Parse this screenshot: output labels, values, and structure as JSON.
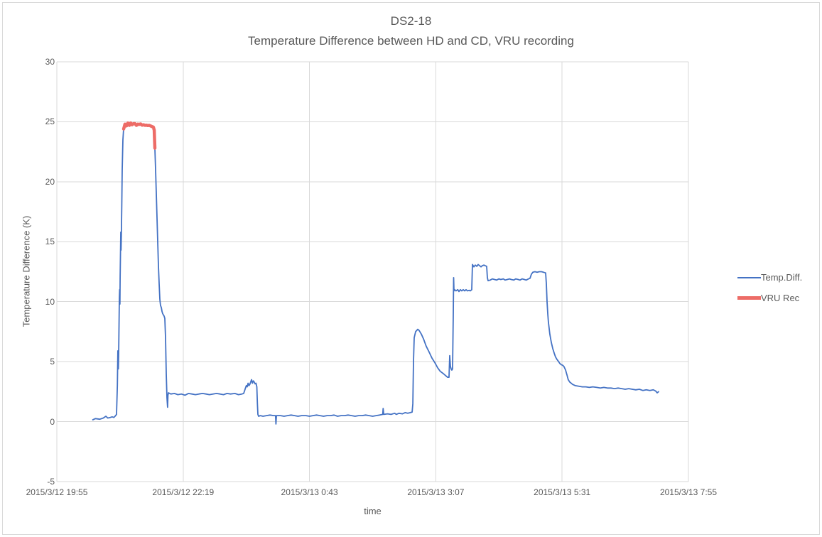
{
  "window": {
    "background": "#FFFFFF",
    "border_color": "#D9D9D9"
  },
  "chart_data": {
    "type": "line",
    "title": "DS2-18",
    "subtitle": "Temperature Difference between HD and CD, VRU recording",
    "xlabel": "time",
    "ylabel": "Temperature Difference (K)",
    "ylim": [
      -5,
      30
    ],
    "yticks": [
      30,
      25,
      20,
      15,
      10,
      5,
      0,
      -5
    ],
    "grid": true,
    "grid_color": "#D9D9D9",
    "text_color": "#595959",
    "legend_position": "right",
    "x_axis": {
      "range_minutes": [
        0,
        720
      ],
      "tick_minutes": [
        0,
        144,
        288,
        432,
        576,
        720
      ],
      "tick_labels": [
        "2015/3/12 19:55",
        "2015/3/12 22:19",
        "2015/3/13 0:43",
        "2015/3/13 3:07",
        "2015/3/13 5:31",
        "2015/3/13 7:55"
      ]
    },
    "series": [
      {
        "name": "Temp.Diff.",
        "color": "#4472C4",
        "stroke_width": 1.8,
        "points": [
          [
            41,
            0.15
          ],
          [
            44,
            0.25
          ],
          [
            49,
            0.2
          ],
          [
            53,
            0.3
          ],
          [
            56,
            0.45
          ],
          [
            58,
            0.3
          ],
          [
            61,
            0.35
          ],
          [
            63,
            0.4
          ],
          [
            65,
            0.35
          ],
          [
            67,
            0.5
          ],
          [
            68,
            0.6
          ],
          [
            69,
            3
          ],
          [
            69.6,
            5.9
          ],
          [
            70.1,
            4.4
          ],
          [
            70.5,
            5.5
          ],
          [
            71.3,
            10.3
          ],
          [
            71.6,
            11
          ],
          [
            71.9,
            9.8
          ],
          [
            72.2,
            12
          ],
          [
            72.9,
            15.8
          ],
          [
            73.2,
            14.3
          ],
          [
            73.5,
            15.5
          ],
          [
            74,
            18
          ],
          [
            74.5,
            21
          ],
          [
            75.3,
            23.5
          ],
          [
            76.1,
            24.4
          ],
          [
            76.9,
            24.6
          ],
          [
            77.7,
            24.8
          ],
          [
            79.4,
            24.65
          ],
          [
            81,
            24.9
          ],
          [
            82.6,
            24.7
          ],
          [
            84.2,
            24.9
          ],
          [
            85.8,
            24.75
          ],
          [
            87.5,
            24.85
          ],
          [
            89.1,
            24.85
          ],
          [
            90.7,
            24.7
          ],
          [
            92.3,
            24.8
          ],
          [
            93.9,
            24.78
          ],
          [
            95.6,
            24.82
          ],
          [
            97.2,
            24.72
          ],
          [
            98.8,
            24.75
          ],
          [
            100.4,
            24.7
          ],
          [
            102,
            24.72
          ],
          [
            103.7,
            24.68
          ],
          [
            105.3,
            24.7
          ],
          [
            106.9,
            24.65
          ],
          [
            108.5,
            24.6
          ],
          [
            110.1,
            24.55
          ],
          [
            111,
            24.3
          ],
          [
            111.8,
            22.8
          ],
          [
            112.6,
            21
          ],
          [
            113.4,
            19
          ],
          [
            114.2,
            17
          ],
          [
            115,
            15
          ],
          [
            115.8,
            13
          ],
          [
            116.6,
            11.5
          ],
          [
            117.4,
            10.2
          ],
          [
            118.2,
            9.7
          ],
          [
            119.1,
            9.5
          ],
          [
            119.9,
            9.2
          ],
          [
            120.7,
            9
          ],
          [
            121.5,
            8.9
          ],
          [
            122.3,
            8.8
          ],
          [
            123.1,
            8.6
          ],
          [
            123.9,
            7
          ],
          [
            124.7,
            4
          ],
          [
            125.5,
            2
          ],
          [
            126.3,
            1.2
          ],
          [
            126.7,
            2.2
          ],
          [
            127.2,
            2.4
          ],
          [
            130,
            2.3
          ],
          [
            134,
            2.35
          ],
          [
            138,
            2.25
          ],
          [
            142,
            2.3
          ],
          [
            146,
            2.2
          ],
          [
            150,
            2.35
          ],
          [
            154,
            2.3
          ],
          [
            158,
            2.25
          ],
          [
            162,
            2.3
          ],
          [
            166,
            2.35
          ],
          [
            170,
            2.3
          ],
          [
            174,
            2.25
          ],
          [
            178,
            2.3
          ],
          [
            182,
            2.35
          ],
          [
            186,
            2.3
          ],
          [
            190,
            2.25
          ],
          [
            194,
            2.35
          ],
          [
            198,
            2.3
          ],
          [
            203,
            2.35
          ],
          [
            207,
            2.25
          ],
          [
            211,
            2.3
          ],
          [
            213,
            2.35
          ],
          [
            215,
            2.8
          ],
          [
            216,
            3
          ],
          [
            217,
            2.9
          ],
          [
            218,
            3.2
          ],
          [
            219,
            3
          ],
          [
            220,
            3.1
          ],
          [
            222,
            3.5
          ],
          [
            223,
            3.2
          ],
          [
            224,
            3.4
          ],
          [
            225,
            3.3
          ],
          [
            226,
            3.15
          ],
          [
            227,
            3.2
          ],
          [
            228,
            2.9
          ],
          [
            228.6,
            1.5
          ],
          [
            229.2,
            0.6
          ],
          [
            230,
            0.45
          ],
          [
            232,
            0.5
          ],
          [
            235,
            0.45
          ],
          [
            239,
            0.5
          ],
          [
            243,
            0.55
          ],
          [
            247,
            0.5
          ],
          [
            249.3,
            0.5
          ],
          [
            249.8,
            -0.2
          ],
          [
            250.3,
            0.5
          ],
          [
            255,
            0.5
          ],
          [
            259,
            0.45
          ],
          [
            263,
            0.5
          ],
          [
            267,
            0.55
          ],
          [
            271,
            0.5
          ],
          [
            275,
            0.45
          ],
          [
            279,
            0.5
          ],
          [
            284,
            0.5
          ],
          [
            288,
            0.45
          ],
          [
            292,
            0.5
          ],
          [
            296,
            0.55
          ],
          [
            300,
            0.5
          ],
          [
            304,
            0.45
          ],
          [
            308,
            0.5
          ],
          [
            312,
            0.5
          ],
          [
            316,
            0.55
          ],
          [
            320,
            0.45
          ],
          [
            324,
            0.5
          ],
          [
            328,
            0.5
          ],
          [
            332,
            0.55
          ],
          [
            336,
            0.5
          ],
          [
            340,
            0.45
          ],
          [
            344,
            0.5
          ],
          [
            348,
            0.5
          ],
          [
            352,
            0.55
          ],
          [
            356,
            0.5
          ],
          [
            360,
            0.45
          ],
          [
            364,
            0.5
          ],
          [
            368,
            0.55
          ],
          [
            371.5,
            0.6
          ],
          [
            372,
            1.1
          ],
          [
            372.6,
            0.6
          ],
          [
            377,
            0.65
          ],
          [
            381,
            0.6
          ],
          [
            385,
            0.7
          ],
          [
            387,
            0.6
          ],
          [
            390,
            0.7
          ],
          [
            394,
            0.65
          ],
          [
            397,
            0.75
          ],
          [
            400,
            0.7
          ],
          [
            403,
            0.75
          ],
          [
            405,
            0.8
          ],
          [
            405.8,
            1.5
          ],
          [
            406.6,
            5
          ],
          [
            407.4,
            7
          ],
          [
            409,
            7.5
          ],
          [
            411.4,
            7.7
          ],
          [
            413,
            7.6
          ],
          [
            415.5,
            7.3
          ],
          [
            418,
            6.9
          ],
          [
            421,
            6.3
          ],
          [
            424.4,
            5.8
          ],
          [
            427.6,
            5.3
          ],
          [
            431,
            4.9
          ],
          [
            434,
            4.5
          ],
          [
            437,
            4.2
          ],
          [
            440.6,
            4
          ],
          [
            443.8,
            3.8
          ],
          [
            445.4,
            3.7
          ],
          [
            447.1,
            3.7
          ],
          [
            447.9,
            5.5
          ],
          [
            448.7,
            4.6
          ],
          [
            449.5,
            4.4
          ],
          [
            450.3,
            4.3
          ],
          [
            451.1,
            4.4
          ],
          [
            451.9,
            9
          ],
          [
            452.3,
            12
          ],
          [
            452.7,
            10.9
          ],
          [
            453.5,
            11
          ],
          [
            455,
            10.9
          ],
          [
            457,
            11
          ],
          [
            458.4,
            10.85
          ],
          [
            460,
            11
          ],
          [
            461.6,
            10.9
          ],
          [
            463.3,
            11
          ],
          [
            465,
            10.9
          ],
          [
            466.5,
            11
          ],
          [
            468,
            10.9
          ],
          [
            470,
            10.95
          ],
          [
            471.4,
            10.9
          ],
          [
            473,
            11
          ],
          [
            473.8,
            13.1
          ],
          [
            475.4,
            12.9
          ],
          [
            477,
            13.05
          ],
          [
            478.7,
            12.95
          ],
          [
            480.3,
            13.1
          ],
          [
            482,
            13
          ],
          [
            483.5,
            12.9
          ],
          [
            485,
            13
          ],
          [
            486.8,
            13.05
          ],
          [
            488.4,
            13
          ],
          [
            490,
            12.95
          ],
          [
            490.8,
            12
          ],
          [
            491.6,
            11.75
          ],
          [
            494,
            11.8
          ],
          [
            496.5,
            11.9
          ],
          [
            499,
            11.85
          ],
          [
            501.3,
            11.8
          ],
          [
            504,
            11.9
          ],
          [
            506,
            11.85
          ],
          [
            509,
            11.9
          ],
          [
            511,
            11.8
          ],
          [
            513.5,
            11.85
          ],
          [
            516,
            11.9
          ],
          [
            518,
            11.85
          ],
          [
            521,
            11.8
          ],
          [
            523,
            11.9
          ],
          [
            526,
            11.85
          ],
          [
            528,
            11.8
          ],
          [
            530.5,
            11.9
          ],
          [
            533,
            11.85
          ],
          [
            535,
            11.8
          ],
          [
            537.8,
            11.9
          ],
          [
            539.4,
            11.95
          ],
          [
            541,
            12.3
          ],
          [
            542.6,
            12.45
          ],
          [
            545,
            12.5
          ],
          [
            547.5,
            12.45
          ],
          [
            550,
            12.5
          ],
          [
            552.4,
            12.5
          ],
          [
            554.8,
            12.45
          ],
          [
            557.2,
            12.4
          ],
          [
            558,
            11.5
          ],
          [
            558.8,
            10
          ],
          [
            559.6,
            9
          ],
          [
            560.4,
            8.3
          ],
          [
            562,
            7.3
          ],
          [
            563.7,
            6.6
          ],
          [
            565.3,
            6.1
          ],
          [
            567,
            5.7
          ],
          [
            568.5,
            5.4
          ],
          [
            570,
            5.2
          ],
          [
            572,
            5
          ],
          [
            573.4,
            4.85
          ],
          [
            575,
            4.75
          ],
          [
            576.6,
            4.7
          ],
          [
            578,
            4.6
          ],
          [
            580,
            4.3
          ],
          [
            580.7,
            4.1
          ],
          [
            581.5,
            3.9
          ],
          [
            583,
            3.5
          ],
          [
            584.7,
            3.3
          ],
          [
            586.4,
            3.2
          ],
          [
            588,
            3.1
          ],
          [
            589.6,
            3.05
          ],
          [
            591,
            3
          ],
          [
            595,
            2.95
          ],
          [
            599,
            2.9
          ],
          [
            603,
            2.9
          ],
          [
            607,
            2.85
          ],
          [
            611,
            2.9
          ],
          [
            615.5,
            2.85
          ],
          [
            619.6,
            2.8
          ],
          [
            623.6,
            2.85
          ],
          [
            627.7,
            2.8
          ],
          [
            631.7,
            2.8
          ],
          [
            635.8,
            2.75
          ],
          [
            639.8,
            2.8
          ],
          [
            643.9,
            2.75
          ],
          [
            647.9,
            2.7
          ],
          [
            652,
            2.75
          ],
          [
            656,
            2.7
          ],
          [
            660,
            2.65
          ],
          [
            664,
            2.7
          ],
          [
            668,
            2.6
          ],
          [
            672,
            2.65
          ],
          [
            676,
            2.6
          ],
          [
            680,
            2.65
          ],
          [
            682.7,
            2.55
          ],
          [
            684.4,
            2.4
          ],
          [
            686,
            2.5
          ]
        ]
      },
      {
        "name": "VRU Rec",
        "color": "#ED6C67",
        "stroke_width": 4.5,
        "points": [
          [
            76.1,
            24.4
          ],
          [
            76.9,
            24.6
          ],
          [
            77.7,
            24.8
          ],
          [
            79.4,
            24.65
          ],
          [
            81,
            24.9
          ],
          [
            82.6,
            24.7
          ],
          [
            84.2,
            24.9
          ],
          [
            85.8,
            24.75
          ],
          [
            87.5,
            24.85
          ],
          [
            89.1,
            24.85
          ],
          [
            90.7,
            24.7
          ],
          [
            92.3,
            24.8
          ],
          [
            93.9,
            24.78
          ],
          [
            95.6,
            24.82
          ],
          [
            97.2,
            24.72
          ],
          [
            98.8,
            24.75
          ],
          [
            100.4,
            24.7
          ],
          [
            102,
            24.72
          ],
          [
            103.7,
            24.68
          ],
          [
            105.3,
            24.7
          ],
          [
            106.9,
            24.65
          ],
          [
            108.5,
            24.6
          ],
          [
            110.1,
            24.55
          ],
          [
            111,
            24.3
          ],
          [
            111.4,
            23.6
          ],
          [
            111.8,
            22.8
          ]
        ]
      }
    ]
  }
}
